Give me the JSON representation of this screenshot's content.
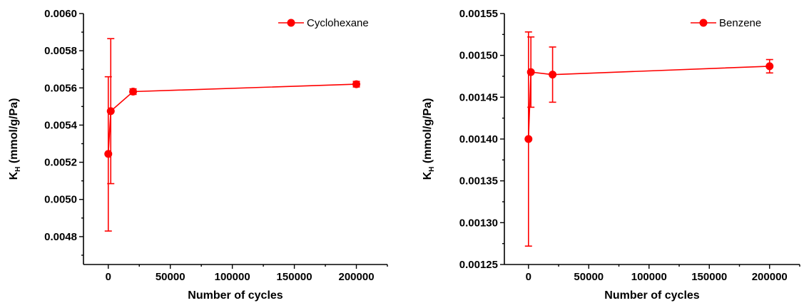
{
  "colors": {
    "series": "#ff0000",
    "axis": "#000000"
  },
  "chart_data": [
    {
      "type": "line",
      "xlabel": "Number of cycles",
      "ylabel_main": "K",
      "ylabel_sub": "H",
      "ylabel_rest": " (mmol/g/Pa)",
      "xlim": [
        -20000,
        225000
      ],
      "ylim": [
        0.00465,
        0.006
      ],
      "xticks": [
        0,
        50000,
        100000,
        150000,
        200000
      ],
      "xtick_labels": [
        "0",
        "50000",
        "100000",
        "150000",
        "200000"
      ],
      "yticks": [
        0.0048,
        0.005,
        0.0052,
        0.0054,
        0.0056,
        0.0058,
        0.006
      ],
      "ytick_labels": [
        "0.0048",
        "0.0050",
        "0.0052",
        "0.0054",
        "0.0056",
        "0.0058",
        "0.0060"
      ],
      "legend_position": "top-right",
      "series": [
        {
          "name": "Cyclohexane",
          "x": [
            0,
            2000,
            20000,
            200000
          ],
          "y": [
            0.005245,
            0.005475,
            0.00558,
            0.00562
          ],
          "err": [
            0.000415,
            0.00039,
            1.5e-05,
            1.5e-05
          ]
        }
      ]
    },
    {
      "type": "line",
      "xlabel": "Number of cycles",
      "ylabel_main": "K",
      "ylabel_sub": "H",
      "ylabel_rest": " (mmol/g/Pa)",
      "xlim": [
        -20000,
        225000
      ],
      "ylim": [
        0.00125,
        0.00155
      ],
      "xticks": [
        0,
        50000,
        100000,
        150000,
        200000
      ],
      "xtick_labels": [
        "0",
        "50000",
        "100000",
        "150000",
        "200000"
      ],
      "yticks": [
        0.00125,
        0.0013,
        0.00135,
        0.0014,
        0.00145,
        0.0015,
        0.00155
      ],
      "ytick_labels": [
        "0.00125",
        "0.00130",
        "0.00135",
        "0.00140",
        "0.00145",
        "0.00150",
        "0.00155"
      ],
      "legend_position": "top-right",
      "series": [
        {
          "name": "Benzene",
          "x": [
            0,
            2000,
            20000,
            200000
          ],
          "y": [
            0.0014,
            0.00148,
            0.001477,
            0.001487
          ],
          "err": [
            0.000128,
            4.2e-05,
            3.3e-05,
            8e-06
          ]
        }
      ]
    }
  ]
}
